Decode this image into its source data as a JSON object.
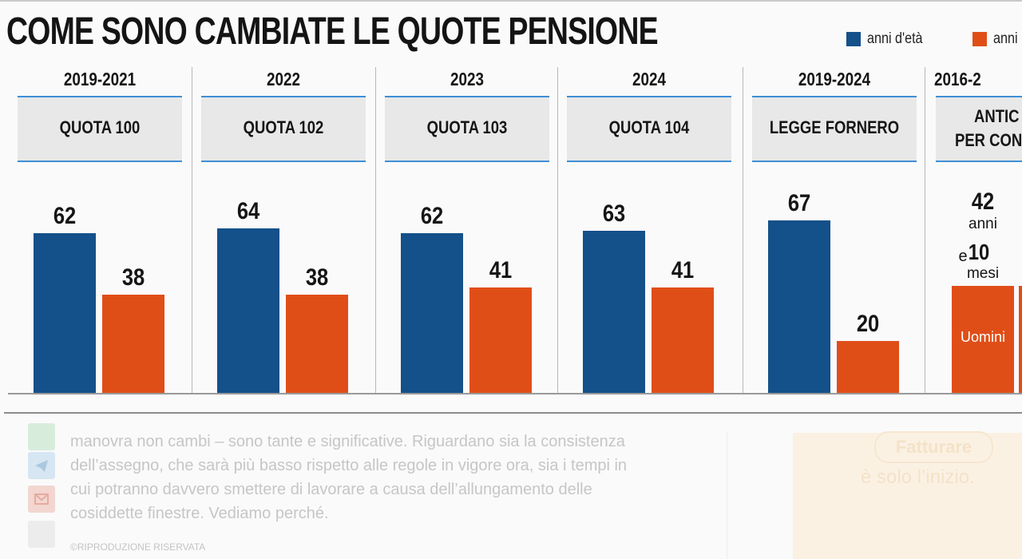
{
  "title": "COME SONO CAMBIATE LE QUOTE PENSIONE",
  "legend": [
    {
      "label": "anni d'età",
      "color": "#14508a"
    },
    {
      "label": "anni",
      "color": "#e04e18"
    }
  ],
  "chart_data": {
    "type": "bar",
    "categories": [
      "QUOTA 100",
      "QUOTA 102",
      "QUOTA 103",
      "QUOTA 104",
      "LEGGE FORNERO"
    ],
    "periods": [
      "2019-2021",
      "2022",
      "2023",
      "2024",
      "2019-2024"
    ],
    "series": [
      {
        "name": "anni d'età",
        "values": [
          62,
          64,
          62,
          63,
          67
        ]
      },
      {
        "name": "anni",
        "values": [
          38,
          38,
          41,
          41,
          20
        ]
      }
    ],
    "ylim": [
      0,
      70
    ],
    "extra_column": {
      "period": "2016-2",
      "label_line1": "ANTIC",
      "label_line2": "PER CONT",
      "big_number": "42",
      "word_anni": "anni",
      "conj": "e",
      "small_number": "10",
      "word_mesi": "mesi",
      "bar_label": "Uomini"
    }
  },
  "article": {
    "lines": [
      "manovra non cambi – sono tante e significative. Riguardano sia la consistenza",
      "dell’assegno, che sarà più basso rispetto alle regole in vigore ora, sia i tempi in",
      "cui potranno davvero smettere di lavorare a causa dell’allungamento delle",
      "cosiddette finestre. Vediamo perché."
    ],
    "copyright": "©RIPRODUZIONE RISERVATA"
  },
  "ad": {
    "pill": "Fatturare",
    "line": "è solo l’inizio."
  }
}
